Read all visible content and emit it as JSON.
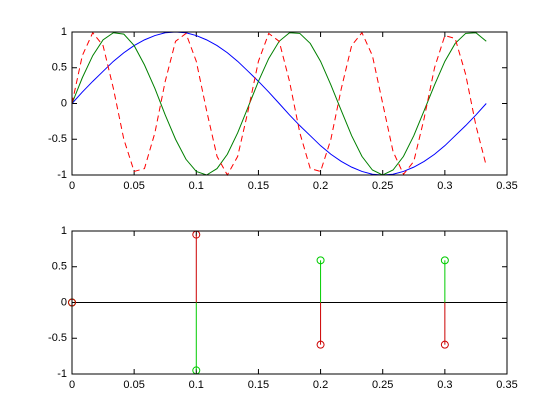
{
  "chart_data": [
    {
      "type": "line",
      "x": [
        0,
        0.0083,
        0.0167,
        0.025,
        0.0333,
        0.0417,
        0.05,
        0.0583,
        0.0667,
        0.075,
        0.0833,
        0.0917,
        0.1,
        0.1083,
        0.1167,
        0.125,
        0.1333,
        0.1417,
        0.15,
        0.1583,
        0.1667,
        0.175,
        0.1833,
        0.1917,
        0.2,
        0.2083,
        0.2167,
        0.225,
        0.2333,
        0.2417,
        0.25,
        0.2583,
        0.2667,
        0.275,
        0.2833,
        0.2917,
        0.3,
        0.3083,
        0.3167,
        0.325,
        0.3333
      ],
      "series": [
        {
          "color": "#0000ff",
          "linestyle": "solid",
          "values": [
            0,
            0.16,
            0.31,
            0.45,
            0.59,
            0.71,
            0.81,
            0.89,
            0.95,
            0.99,
            1,
            0.99,
            0.95,
            0.89,
            0.81,
            0.71,
            0.59,
            0.45,
            0.31,
            0.16,
            0,
            -0.16,
            -0.31,
            -0.45,
            -0.59,
            -0.71,
            -0.81,
            -0.89,
            -0.95,
            -0.99,
            -1,
            -0.99,
            -0.95,
            -0.89,
            -0.81,
            -0.71,
            -0.59,
            -0.45,
            -0.31,
            -0.16,
            0
          ]
        },
        {
          "color": "#008000",
          "linestyle": "solid",
          "values": [
            0,
            0.36,
            0.67,
            0.89,
            0.99,
            0.97,
            0.81,
            0.54,
            0.21,
            -0.16,
            -0.5,
            -0.78,
            -0.95,
            -1,
            -0.91,
            -0.71,
            -0.41,
            -0.05,
            0.31,
            0.63,
            0.87,
            0.99,
            0.98,
            0.84,
            0.59,
            0.26,
            -0.1,
            -0.45,
            -0.74,
            -0.93,
            -1,
            -0.93,
            -0.74,
            -0.45,
            -0.1,
            0.26,
            0.59,
            0.84,
            0.98,
            0.99,
            0.87
          ]
        },
        {
          "color": "#ff0000",
          "linestyle": "dashed",
          "values": [
            0,
            0.67,
            0.99,
            0.81,
            0.21,
            -0.5,
            -0.95,
            -0.91,
            -0.41,
            0.31,
            0.87,
            0.98,
            0.59,
            -0.1,
            -0.74,
            -1,
            -0.74,
            -0.1,
            0.59,
            0.98,
            0.87,
            0.31,
            -0.41,
            -0.91,
            -0.95,
            -0.5,
            0.21,
            0.81,
            0.99,
            0.67,
            0,
            -0.67,
            -0.99,
            -0.81,
            -0.21,
            0.5,
            0.95,
            0.91,
            0.41,
            -0.31,
            -0.87
          ]
        }
      ],
      "xlim": [
        0,
        0.35
      ],
      "xticks": [
        0,
        0.05,
        0.1,
        0.15,
        0.2,
        0.25,
        0.3,
        0.35
      ],
      "ylim": [
        -1,
        1
      ],
      "yticks": [
        -1,
        -0.5,
        0,
        0.5,
        1
      ],
      "grid": false
    },
    {
      "type": "stem",
      "x": [
        0,
        0.1,
        0.2,
        0.3
      ],
      "series": [
        {
          "color": "#00cc00",
          "values": [
            0,
            -0.95,
            0.59,
            0.59
          ]
        },
        {
          "color": "#cc0000",
          "values": [
            0,
            0.95,
            -0.59,
            -0.59
          ]
        }
      ],
      "baseline": 0,
      "xlim": [
        0,
        0.35
      ],
      "xticks": [
        0,
        0.05,
        0.1,
        0.15,
        0.2,
        0.25,
        0.3,
        0.35
      ],
      "ylim": [
        -1,
        1
      ],
      "yticks": [
        -1,
        -0.5,
        0,
        0.5,
        1
      ],
      "grid": false
    }
  ]
}
